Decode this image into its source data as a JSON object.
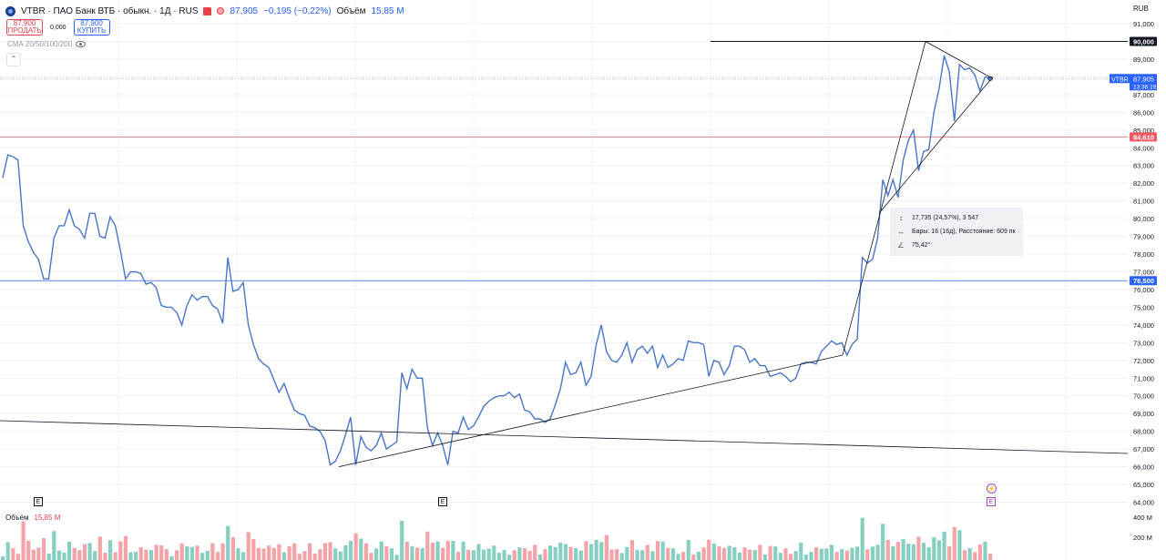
{
  "header": {
    "title": "VTBR · ПАО Банк ВТБ · обыкн. · 1Д · RUS",
    "price": "87,905",
    "change": "−0,195 (−0,22%)",
    "volume_label": "Объём",
    "volume_value": "15,85 M"
  },
  "trade": {
    "sell_price": "87,900",
    "sell_label": "ПРОДАТЬ",
    "spread": "0,000",
    "buy_price": "87,900",
    "buy_label": "КУПИТЬ"
  },
  "indicator_label": "СМА 20/50/100/200",
  "currency": "RUB",
  "measure": {
    "line1": "17,735 (24,57%), 3 547",
    "line2": "Бары: 16 (16д), Расстояние: 609 пк",
    "line3": "75,42°"
  },
  "volume_pane": {
    "label": "Объём",
    "value": "15,85 M",
    "ticks": [
      "400 M",
      "200 M"
    ]
  },
  "events": {
    "earnings_label": "E"
  },
  "colors": {
    "line": "#4a76c9",
    "up_volume": "#86cfc1",
    "down_volume": "#f4a3a8",
    "red_level": "#ef7b82",
    "blue_level": "#2962ff",
    "accent": "#2962ff"
  },
  "chart_data": {
    "type": "line",
    "symbol": "VTBR",
    "ylim": [
      63.5,
      91.6
    ],
    "y_ticks": [
      64000,
      65000,
      66000,
      67000,
      68000,
      69000,
      70000,
      71000,
      72000,
      73000,
      74000,
      75000,
      76000,
      77000,
      78000,
      79000,
      80000,
      81000,
      82000,
      83000,
      84000,
      85000,
      86000,
      87000,
      88000,
      89000,
      90000,
      91000
    ],
    "y_tick_labels": [
      "64,000",
      "65,000",
      "66,000",
      "67,000",
      "68,000",
      "69,000",
      "70,000",
      "71,000",
      "72,000",
      "73,000",
      "74,000",
      "75,000",
      "76,000",
      "77,000",
      "78,000",
      "79,000",
      "80,000",
      "81,000",
      "82,000",
      "83,000",
      "84,000",
      "85,000",
      "86,000",
      "87,000",
      "88,000",
      "89,000",
      "90,000",
      "91,000"
    ],
    "values": [
      82.3,
      83.6,
      83.5,
      83.3,
      79.6,
      78.7,
      78.1,
      77.7,
      76.6,
      76.6,
      78.9,
      79.6,
      79.6,
      80.5,
      79.6,
      79.4,
      78.9,
      80.3,
      80.3,
      79.0,
      78.9,
      80.1,
      79.6,
      78.2,
      76.6,
      77.0,
      77.0,
      76.9,
      76.3,
      76.4,
      76.1,
      75.1,
      75.0,
      75.0,
      74.7,
      74.0,
      75.1,
      75.7,
      75.4,
      75.6,
      75.6,
      75.1,
      74.9,
      74.1,
      77.8,
      75.9,
      76.0,
      76.4,
      74.0,
      72.9,
      72.1,
      71.8,
      71.6,
      70.9,
      70.2,
      70.7,
      69.9,
      69.2,
      69.0,
      68.9,
      68.3,
      68.2,
      68.0,
      67.5,
      66.1,
      66.3,
      66.9,
      67.8,
      68.8,
      66.1,
      67.7,
      67.1,
      66.9,
      67.2,
      67.9,
      67.0,
      67.2,
      67.4,
      71.3,
      70.4,
      71.5,
      71.0,
      71.0,
      68.2,
      67.2,
      67.9,
      67.2,
      66.1,
      68.0,
      67.9,
      68.8,
      68.1,
      68.3,
      68.8,
      69.4,
      69.7,
      69.9,
      70.0,
      70.0,
      70.2,
      69.9,
      70.1,
      69.2,
      69.1,
      68.7,
      68.7,
      68.5,
      68.7,
      69.5,
      70.4,
      71.9,
      71.2,
      71.3,
      71.9,
      70.6,
      71.1,
      72.9,
      74.0,
      72.5,
      72.0,
      71.9,
      72.3,
      73.0,
      71.9,
      72.6,
      72.8,
      72.4,
      72.8,
      71.6,
      72.3,
      71.6,
      71.8,
      72.1,
      72.0,
      73.1,
      73.0,
      73.0,
      72.9,
      71.1,
      72.0,
      71.9,
      71.2,
      71.7,
      72.8,
      72.8,
      72.6,
      71.9,
      72.1,
      71.7,
      71.7,
      71.1,
      71.2,
      71.3,
      71.1,
      70.8,
      71.0,
      71.8,
      71.9,
      71.9,
      71.8,
      72.5,
      72.8,
      73.1,
      72.9,
      73.0,
      72.3,
      72.9,
      73.2,
      77.8,
      77.5,
      77.7,
      78.9,
      82.2,
      81.3,
      82.2,
      81.2,
      83.3,
      84.4,
      85.0,
      82.7,
      83.8,
      83.9,
      86.0,
      87.3,
      89.2,
      88.3,
      85.5,
      88.7,
      88.4,
      88.5,
      88.1,
      87.2,
      88.0,
      87.9
    ]
  }
}
